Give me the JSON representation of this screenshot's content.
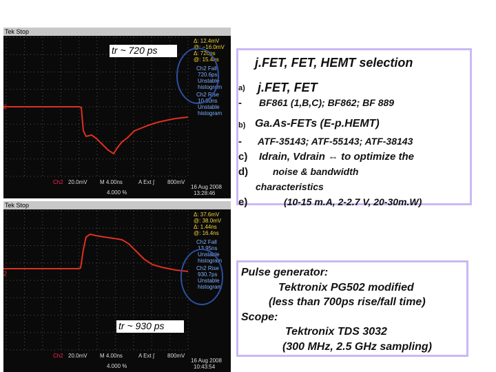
{
  "scopes": [
    {
      "header": "Tek Stop",
      "marker": "2",
      "cursor": [
        "Δ: 12.4mV",
        "@: −16.0mV",
        "Δ: 720ps",
        "@: 15.4ns"
      ],
      "panel": [
        "Ch2 Fall",
        "720.6ps",
        "Unstable",
        "histogram",
        "Ch2 Rise",
        "10.80ns",
        "Unstable",
        "histogram"
      ],
      "status": [
        "Ch2",
        "20.0mV",
        "M 4.00ns",
        "A  Ext  ∫",
        "800mV",
        "4.000 %"
      ],
      "date": "16 Aug 2008",
      "time": "13:28:46",
      "annotation": "tr ~ 720 ps"
    },
    {
      "header": "Tek Stop",
      "marker": "2",
      "cursor": [
        "Δ: 37.6mV",
        "@: 38.0mV",
        "Δ: 1.44ns",
        "@: 16.4ns"
      ],
      "panel": [
        "Ch2 Fall",
        "13.95ns",
        "Unstable",
        "histogram",
        "Ch2 Rise",
        "930.7ps",
        "Unstable",
        "histogram"
      ],
      "status": [
        "Ch2",
        "20.0mV",
        "M 4.00ns",
        "A  Ext  ∫",
        "800mV",
        "4.000 %"
      ],
      "date": "16 Aug 2008",
      "time": "10:43:54",
      "annotation": "tr ~ 930 ps"
    }
  ],
  "selection": {
    "title": "j.FET, FET, HEMT selection",
    "items": [
      {
        "marker": "a)",
        "text": "j.FET, FET"
      },
      {
        "marker": "-",
        "text": "BF861 (1,B,C);  BF862;  BF 889"
      },
      {
        "marker": "b)",
        "text": "Ga.As-FETs  (E-p.HEMT)"
      },
      {
        "marker": "-",
        "text": "ATF-35143; ATF-55143; ATF-38143"
      },
      {
        "marker": "c)",
        "text": "Idrain, Vdrain ⇔ to optimize the"
      },
      {
        "marker": "d)",
        "text": "noise & bandwidth"
      },
      {
        "marker": "",
        "text": "characteristics"
      },
      {
        "marker": "e)",
        "text": "(10-15 m.A, 2-2.7 V, 20-30m.W)"
      }
    ]
  },
  "equipment": {
    "lines": [
      "Pulse generator:",
      "Tektronix  PG502 modified",
      "(less than 700ps rise/fall time)",
      "Scope:",
      "Tektronix TDS 3032",
      "(300 MHz, 2.5 GHz sampling)"
    ]
  }
}
